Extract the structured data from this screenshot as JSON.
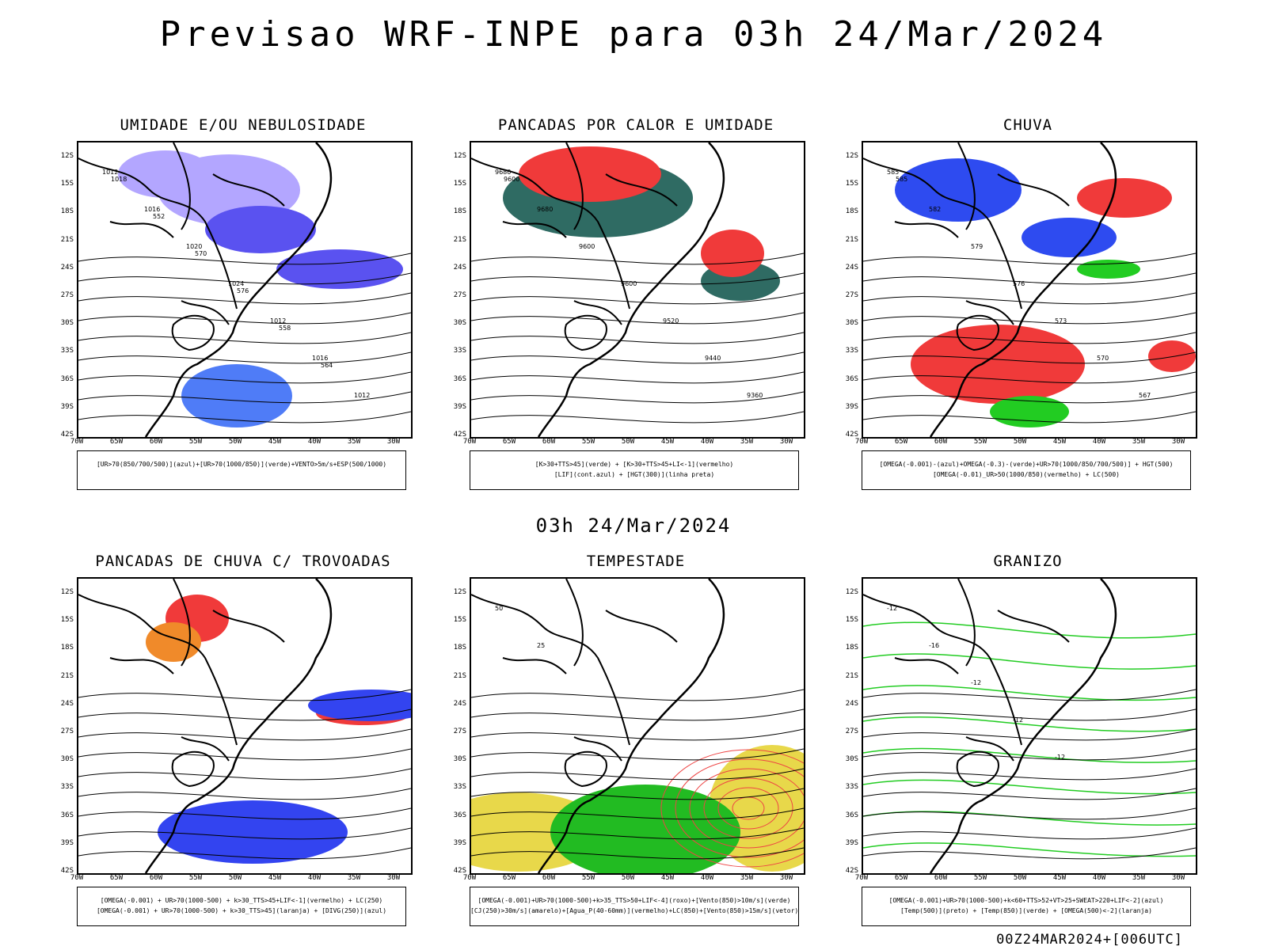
{
  "main_title": "Previsao WRF-INPE  para 03h 24/Mar/2024",
  "mid_title": "03h 24/Mar/2024",
  "footer": "00Z24MAR2024+[006UTC]",
  "lat_labels": [
    "12S",
    "15S",
    "18S",
    "21S",
    "24S",
    "27S",
    "30S",
    "33S",
    "36S",
    "39S",
    "42S"
  ],
  "lon_labels": [
    "70W",
    "65W",
    "60W",
    "55W",
    "50W",
    "45W",
    "40W",
    "35W",
    "30W"
  ],
  "panels": [
    {
      "title": "UMIDADE E/OU NEBULOSIDADE",
      "legend": [
        "[UR>70(850/700/500)](azul)+[UR>70(1000/850)](verde)+VENTO>5m/s+ESP(500/1000)"
      ],
      "labels": [
        "1012",
        "1016",
        "1020",
        "1024",
        "1012",
        "1016",
        "1012",
        "1018",
        "552",
        "570",
        "576",
        "558",
        "564"
      ]
    },
    {
      "title": "PANCADAS POR CALOR E UMIDADE",
      "legend": [
        "[K>30+TTS>45](verde) + [K>30+TTS>45+LI<-1](vermelho)",
        "[LIF](cont.azul) + [HGT(300)](linha preta)"
      ],
      "labels": [
        "9680",
        "9680",
        "9600",
        "9600",
        "9520",
        "9440",
        "9360",
        "9600"
      ]
    },
    {
      "title": "CHUVA",
      "legend": [
        "[OMEGA(-0.001)-(azul)+OMEGA(-0.3)-(verde)+UR>70(1000/850/700/500)] + HGT(500)",
        "[OMEGA(-0.01)_UR>50(1000/850)(vermelho) + LC(500)"
      ],
      "labels": [
        "585",
        "582",
        "579",
        "576",
        "573",
        "570",
        "567",
        "585"
      ]
    },
    {
      "title": "PANCADAS DE CHUVA C/ TROVOADAS",
      "legend": [
        "[OMEGA(-0.001) + UR>70(1000-500) + k>30_TTS>45+LIF<-1](vermelho) + LC(250)",
        "[OMEGA(-0.001) + UR>70(1000-500) + k>30_TTS>45](laranja) + [DIVG(250)](azul)"
      ],
      "labels": []
    },
    {
      "title": "TEMPESTADE",
      "legend": [
        "[OMEGA(-0.001)+UR>70(1000-500)+k>35_TTS>50+LIF<-4](roxo)+[Vento(850)>10m/s](verde)",
        "[CJ(250)>30m/s](amarelo)+[Agua_P(40-60mm)](vermelho)+LC(850)+[Vento(850)>15m/s](vetor)"
      ],
      "labels": [
        "50",
        "25"
      ]
    },
    {
      "title": "GRANIZO",
      "legend": [
        "[OMEGA(-0.001)+UR>70(1000-500)+k<60+TTS>52+VT>25+SWEAT>220+LIF<-2](azul)",
        "[Temp(500)](preto) + [Temp(850)](verde) + [OMEGA(500)<-2](laranja)"
      ],
      "labels": [
        "-12",
        "-16",
        "-12",
        "-12",
        "-12"
      ]
    }
  ]
}
